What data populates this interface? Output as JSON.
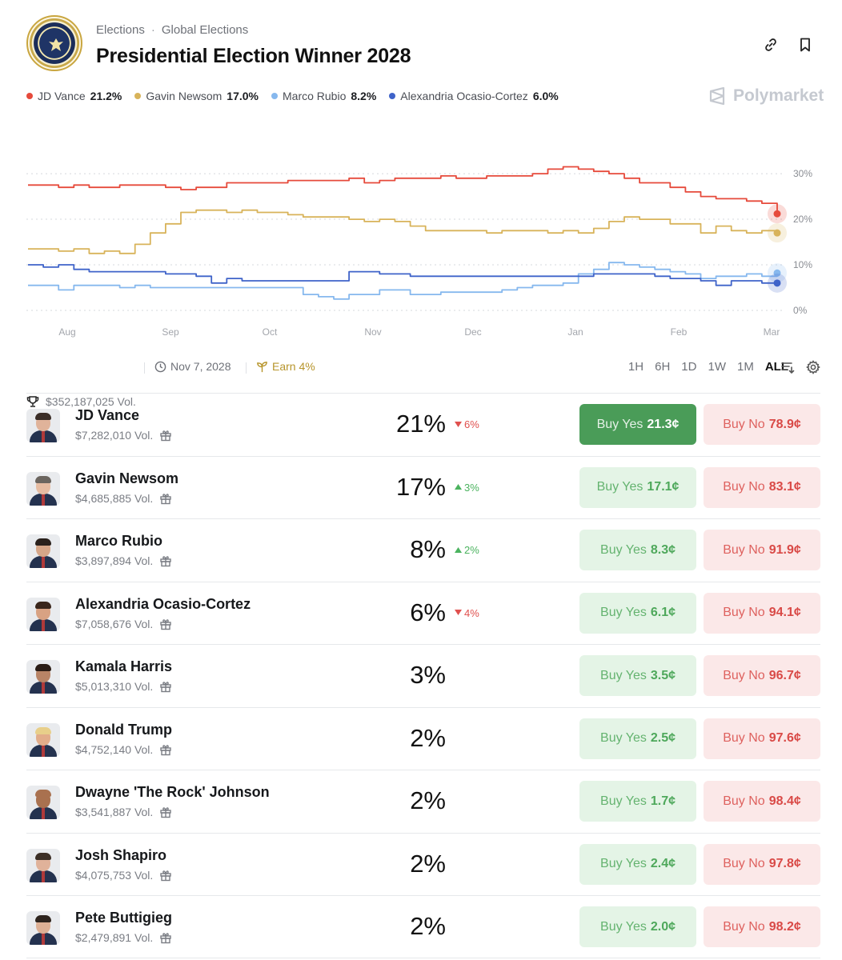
{
  "header": {
    "breadcrumb": [
      "Elections",
      "Global Elections"
    ],
    "title": "Presidential Election Winner 2028"
  },
  "legend": [
    {
      "name": "JD Vance",
      "value": "21.2%",
      "color": "#e64a3b"
    },
    {
      "name": "Gavin Newsom",
      "value": "17.0%",
      "color": "#d8b35a"
    },
    {
      "name": "Marco Rubio",
      "value": "8.2%",
      "color": "#86b8ee"
    },
    {
      "name": "Alexandria Ocasio-Cortez",
      "value": "6.0%",
      "color": "#3f63c9"
    }
  ],
  "brand": "Polymarket",
  "chart_data": {
    "type": "line",
    "x_ticks": [
      "Aug",
      "Sep",
      "Oct",
      "Nov",
      "Dec",
      "Jan",
      "Feb",
      "Mar"
    ],
    "y_ticks": [
      "30%",
      "20%",
      "10%",
      "0%"
    ],
    "ylim": [
      0,
      33
    ],
    "grid": true,
    "series": [
      {
        "name": "JD Vance",
        "color": "#e64a3b",
        "values": [
          27.5,
          27.5,
          27.0,
          27.5,
          27.0,
          27.0,
          27.5,
          27.5,
          27.5,
          27.0,
          26.5,
          27.0,
          27.0,
          28.0,
          28.0,
          28.0,
          28.0,
          28.5,
          28.5,
          28.5,
          28.5,
          29.0,
          28.0,
          28.5,
          29.0,
          29.0,
          29.0,
          29.5,
          29.0,
          29.0,
          29.5,
          29.5,
          29.5,
          30.0,
          31.0,
          31.5,
          31.0,
          30.5,
          30.0,
          29.0,
          28.0,
          28.0,
          27.0,
          26.0,
          25.0,
          24.5,
          24.5,
          24.0,
          23.5,
          21.2
        ]
      },
      {
        "name": "Gavin Newsom",
        "color": "#d8b35a",
        "values": [
          13.5,
          13.5,
          13.0,
          13.5,
          12.5,
          13.0,
          12.5,
          14.5,
          17.0,
          19.0,
          21.5,
          22.0,
          22.0,
          21.5,
          22.0,
          21.5,
          21.5,
          21.0,
          20.5,
          20.5,
          20.5,
          20.0,
          19.5,
          20.0,
          19.5,
          18.5,
          17.5,
          17.5,
          17.5,
          17.5,
          17.0,
          17.5,
          17.5,
          17.5,
          17.0,
          17.5,
          17.0,
          18.0,
          19.5,
          20.5,
          20.0,
          20.0,
          19.0,
          19.0,
          17.0,
          18.5,
          17.5,
          17.0,
          17.5,
          17.0
        ]
      },
      {
        "name": "Marco Rubio",
        "color": "#86b8ee",
        "values": [
          5.5,
          5.5,
          4.5,
          5.5,
          5.5,
          5.5,
          5.0,
          5.5,
          5.0,
          5.0,
          5.0,
          5.0,
          5.0,
          5.0,
          5.0,
          5.0,
          5.0,
          5.0,
          3.5,
          3.0,
          2.5,
          3.5,
          3.5,
          4.5,
          4.5,
          3.5,
          3.5,
          4.0,
          4.0,
          4.0,
          4.0,
          4.5,
          5.0,
          5.5,
          5.5,
          6.0,
          8.0,
          9.0,
          10.5,
          10.0,
          9.5,
          9.0,
          8.5,
          8.0,
          7.0,
          7.5,
          7.5,
          8.0,
          7.5,
          8.2
        ]
      },
      {
        "name": "Alexandria Ocasio-Cortez",
        "color": "#3f63c9",
        "values": [
          10.0,
          9.5,
          10.0,
          9.0,
          8.5,
          8.5,
          8.5,
          8.5,
          8.5,
          8.0,
          8.0,
          7.5,
          6.0,
          7.0,
          6.5,
          6.5,
          6.5,
          6.5,
          6.5,
          6.5,
          6.5,
          8.5,
          8.5,
          8.0,
          8.0,
          7.5,
          7.5,
          7.5,
          7.5,
          7.5,
          7.5,
          7.5,
          7.5,
          7.5,
          7.5,
          7.5,
          7.5,
          8.0,
          8.0,
          8.0,
          8.0,
          7.5,
          7.0,
          7.0,
          6.5,
          5.5,
          6.5,
          6.5,
          6.0,
          6.0
        ]
      }
    ]
  },
  "stats": {
    "volume": "$352,187,025 Vol.",
    "date": "Nov 7, 2028",
    "earn": "Earn 4%",
    "ranges": [
      "1H",
      "6H",
      "1D",
      "1W",
      "1M",
      "ALL"
    ],
    "active_range": "ALL"
  },
  "outcomes": [
    {
      "name": "JD Vance",
      "volume": "$7,282,010 Vol.",
      "pct": "21%",
      "change": "6%",
      "direction": "down",
      "yes": "21.3¢",
      "no": "78.9¢",
      "skin": "#e0b39a",
      "hair": "#3b2e28"
    },
    {
      "name": "Gavin Newsom",
      "volume": "$4,685,885 Vol.",
      "pct": "17%",
      "change": "3%",
      "direction": "up",
      "yes": "17.1¢",
      "no": "83.1¢",
      "skin": "#e6bca2",
      "hair": "#6b655f"
    },
    {
      "name": "Marco Rubio",
      "volume": "$3,897,894 Vol.",
      "pct": "8%",
      "change": "2%",
      "direction": "up",
      "yes": "8.3¢",
      "no": "91.9¢",
      "skin": "#d6a688",
      "hair": "#2a211c"
    },
    {
      "name": "Alexandria Ocasio-Cortez",
      "volume": "$7,058,676 Vol.",
      "pct": "6%",
      "change": "4%",
      "direction": "down",
      "yes": "6.1¢",
      "no": "94.1¢",
      "skin": "#d8a283",
      "hair": "#3a261c"
    },
    {
      "name": "Kamala Harris",
      "volume": "$5,013,310 Vol.",
      "pct": "3%",
      "change": "",
      "direction": "",
      "yes": "3.5¢",
      "no": "96.7¢",
      "skin": "#b88466",
      "hair": "#2b1d16"
    },
    {
      "name": "Donald Trump",
      "volume": "$4,752,140 Vol.",
      "pct": "2%",
      "change": "",
      "direction": "",
      "yes": "2.5¢",
      "no": "97.6¢",
      "skin": "#e2ad8a",
      "hair": "#e8cf8a"
    },
    {
      "name": "Dwayne 'The Rock' Johnson",
      "volume": "$3,541,887 Vol.",
      "pct": "2%",
      "change": "",
      "direction": "",
      "yes": "1.7¢",
      "no": "98.4¢",
      "skin": "#a9714f",
      "hair": "#a9714f"
    },
    {
      "name": "Josh Shapiro",
      "volume": "$4,075,753 Vol.",
      "pct": "2%",
      "change": "",
      "direction": "",
      "yes": "2.4¢",
      "no": "97.8¢",
      "skin": "#e0b29a",
      "hair": "#3c2f26"
    },
    {
      "name": "Pete Buttigieg",
      "volume": "$2,479,891 Vol.",
      "pct": "2%",
      "change": "",
      "direction": "",
      "yes": "2.0¢",
      "no": "98.2¢",
      "skin": "#ddb095",
      "hair": "#2e241e"
    }
  ],
  "buy_yes_label": "Buy Yes",
  "buy_no_label": "Buy No"
}
